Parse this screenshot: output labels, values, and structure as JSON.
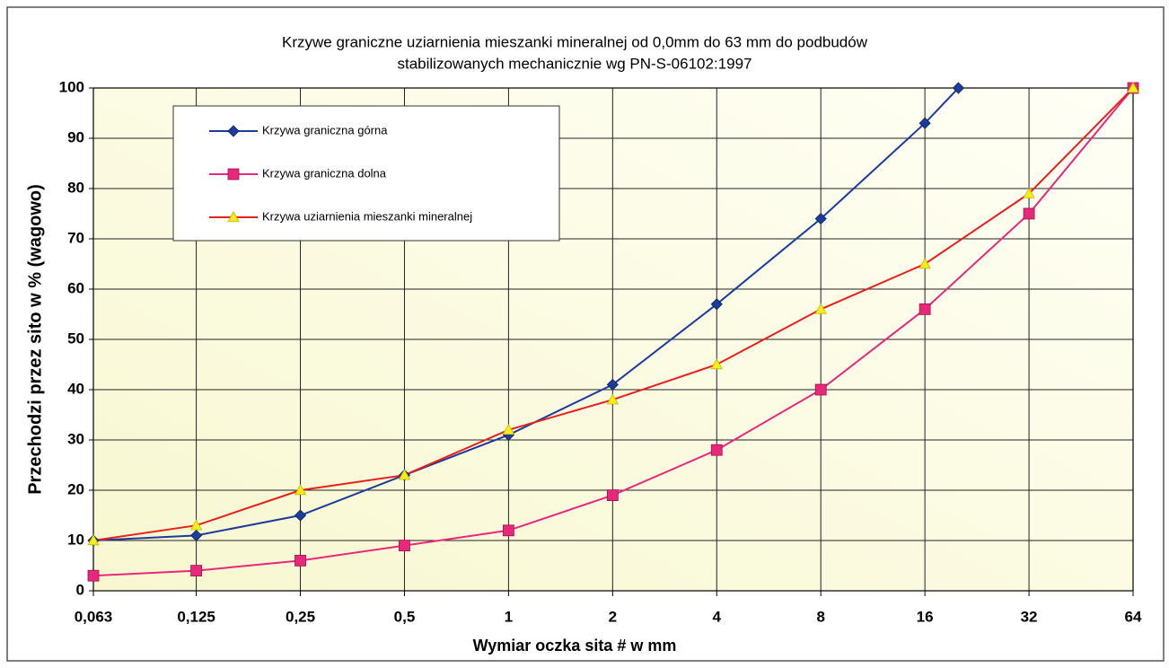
{
  "chart_data": {
    "type": "line",
    "title": [
      "Krzywe graniczne uziarnienia mieszanki mineralnej od 0,0mm do 63 mm do podbudów",
      "stabilizowanych mechanicznie wg PN-S-06102:1997"
    ],
    "x_label": "Wymiar oczka sita # w mm",
    "y_label": "Przechodzi przez sito w % (wagowo)",
    "x_log": true,
    "grid": true,
    "xlim": [
      0.063,
      64
    ],
    "xticks": [
      {
        "value": 0.063,
        "label": "0,063"
      },
      {
        "value": 0.125,
        "label": "0,125"
      },
      {
        "value": 0.25,
        "label": "0,25"
      },
      {
        "value": 0.5,
        "label": "0,5"
      },
      1,
      2,
      4,
      8,
      16,
      32,
      64
    ],
    "ylim": [
      0,
      100
    ],
    "yticks": [
      0,
      10,
      20,
      30,
      40,
      50,
      60,
      70,
      80,
      90,
      100
    ],
    "legend": "upper left",
    "series": [
      {
        "name": "Krzywa graniczna górna",
        "color": "#1c3c9c",
        "marker": "diamond",
        "marker_color": "#1c3c9c",
        "x": [
          0.063,
          0.125,
          0.25,
          0.5,
          1,
          2,
          4,
          8,
          16,
          20
        ],
        "values": [
          10,
          11,
          15,
          23,
          31,
          41,
          57,
          74,
          93,
          100
        ]
      },
      {
        "name": "Krzywa graniczna dolna",
        "color": "#e8287a",
        "marker": "square",
        "marker_color": "#e8287a",
        "x": [
          0.063,
          0.125,
          0.25,
          0.5,
          1,
          2,
          4,
          8,
          16,
          32,
          64
        ],
        "values": [
          3,
          4,
          6,
          9,
          12,
          19,
          28,
          40,
          56,
          75,
          100
        ]
      },
      {
        "name": "Krzywa uziarnienia mieszanki mineralnej",
        "color": "#e8201c",
        "marker": "triangle",
        "marker_color": "#f5ee1a",
        "x": [
          0.063,
          0.125,
          0.25,
          0.5,
          1,
          2,
          4,
          8,
          16,
          32,
          64
        ],
        "values": [
          10,
          13,
          20,
          23,
          32,
          38,
          45,
          56,
          65,
          79,
          100
        ]
      }
    ]
  }
}
